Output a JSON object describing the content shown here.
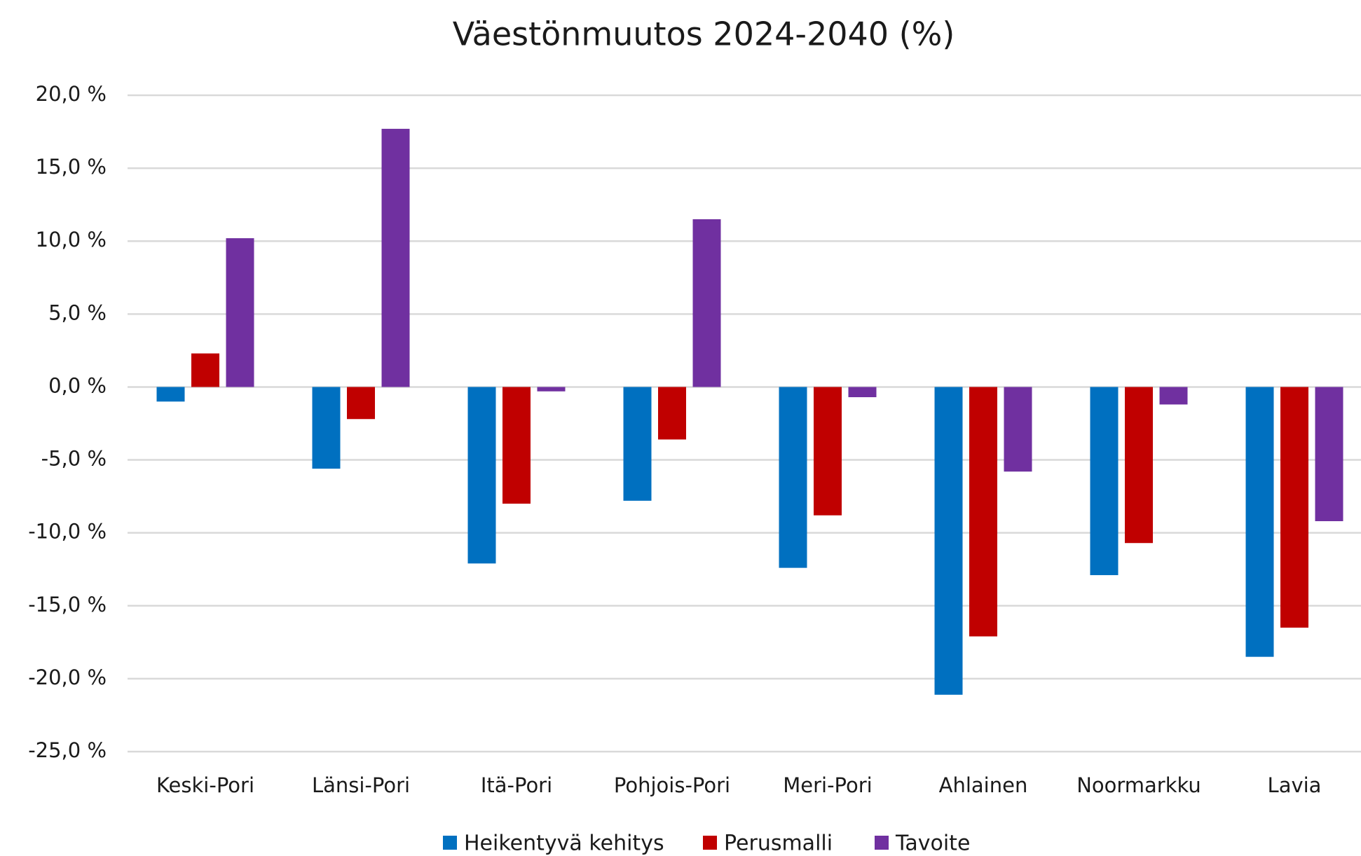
{
  "chart_data": {
    "type": "bar",
    "title": "Väestönmuutos  2024-2040 (%)",
    "categories": [
      "Keski-Pori",
      "Länsi-Pori",
      "Itä-Pori",
      "Pohjois-Pori",
      "Meri-Pori",
      "Ahlainen",
      "Noormarkku",
      "Lavia"
    ],
    "series": [
      {
        "name": "Heikentyvä kehitys",
        "color": "#0070c0",
        "values": [
          -1.0,
          -5.6,
          -12.1,
          -7.8,
          -12.4,
          -21.1,
          -12.9,
          -18.5
        ]
      },
      {
        "name": "Perusmalli",
        "color": "#c00000",
        "values": [
          2.3,
          -2.2,
          -8.0,
          -3.6,
          -8.8,
          -17.1,
          -10.7,
          -16.5
        ]
      },
      {
        "name": "Tavoite",
        "color": "#7030a0",
        "values": [
          10.2,
          17.7,
          -0.3,
          11.5,
          -0.7,
          -5.8,
          -1.2,
          -9.2
        ]
      }
    ],
    "ylim": [
      -25,
      20
    ],
    "yticks": [
      {
        "value": -25,
        "label": "-25,0 %"
      },
      {
        "value": -20,
        "label": "-20,0 %"
      },
      {
        "value": -15,
        "label": "-15,0 %"
      },
      {
        "value": -10,
        "label": "-10,0 %"
      },
      {
        "value": -5,
        "label": "-5,0 %"
      },
      {
        "value": 0,
        "label": "0,0 %"
      },
      {
        "value": 5,
        "label": "5,0 %"
      },
      {
        "value": 10,
        "label": "10,0 %"
      },
      {
        "value": 15,
        "label": "15,0 %"
      },
      {
        "value": 20,
        "label": "20,0 %"
      }
    ],
    "grid": true,
    "legend": "bottom"
  }
}
